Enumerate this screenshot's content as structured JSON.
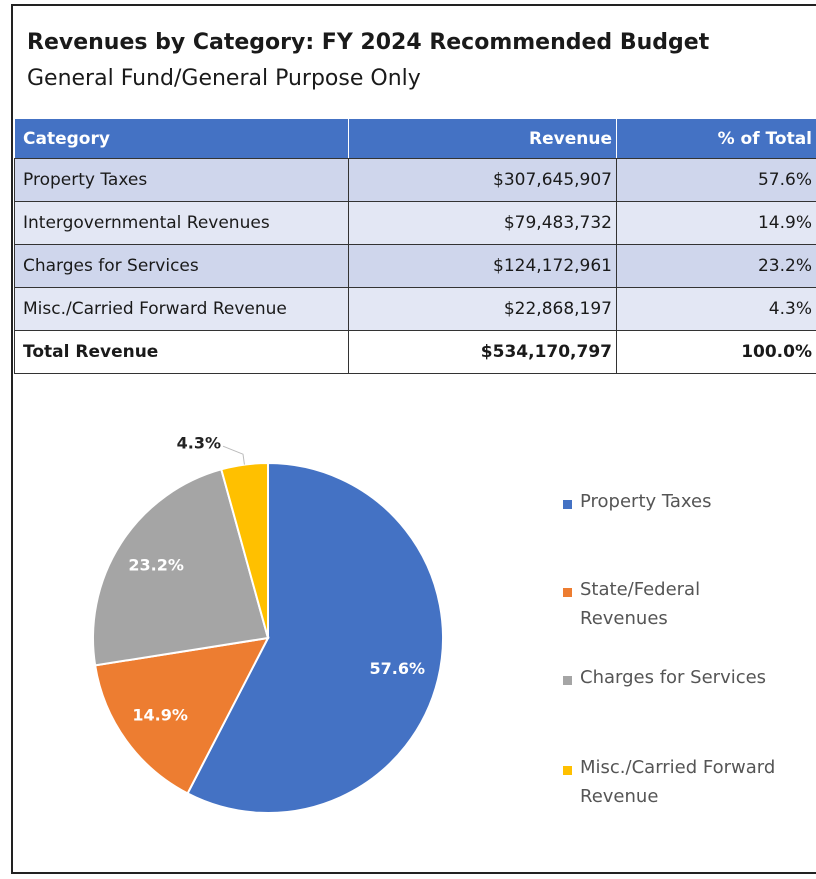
{
  "header": {
    "title": "Revenues by Category: FY 2024 Recommended Budget",
    "subtitle": "General Fund/General Purpose Only"
  },
  "table": {
    "columns": [
      "Category",
      "Revenue",
      "% of Total"
    ],
    "rows": [
      [
        "Property Taxes",
        "$307,645,907",
        "57.6%"
      ],
      [
        "Intergovernmental Revenues",
        "$79,483,732",
        "14.9%"
      ],
      [
        "Charges for Services",
        "$124,172,961",
        "23.2%"
      ],
      [
        "Misc./Carried Forward Revenue",
        "$22,868,197",
        "4.3%"
      ]
    ],
    "total": [
      "Total Revenue",
      "$534,170,797",
      "100.0%"
    ]
  },
  "chart_data": {
    "type": "pie",
    "categories": [
      "Property Taxes",
      "State/Federal Revenues",
      "Charges for Services",
      "Misc./Carried Forward Revenue"
    ],
    "values": [
      57.6,
      14.9,
      23.2,
      4.3
    ],
    "value_labels": [
      "57.6%",
      "14.9%",
      "23.2%",
      "4.3%"
    ],
    "colors": [
      "#4472c4",
      "#ed7d31",
      "#a5a5a5",
      "#ffc000"
    ]
  }
}
